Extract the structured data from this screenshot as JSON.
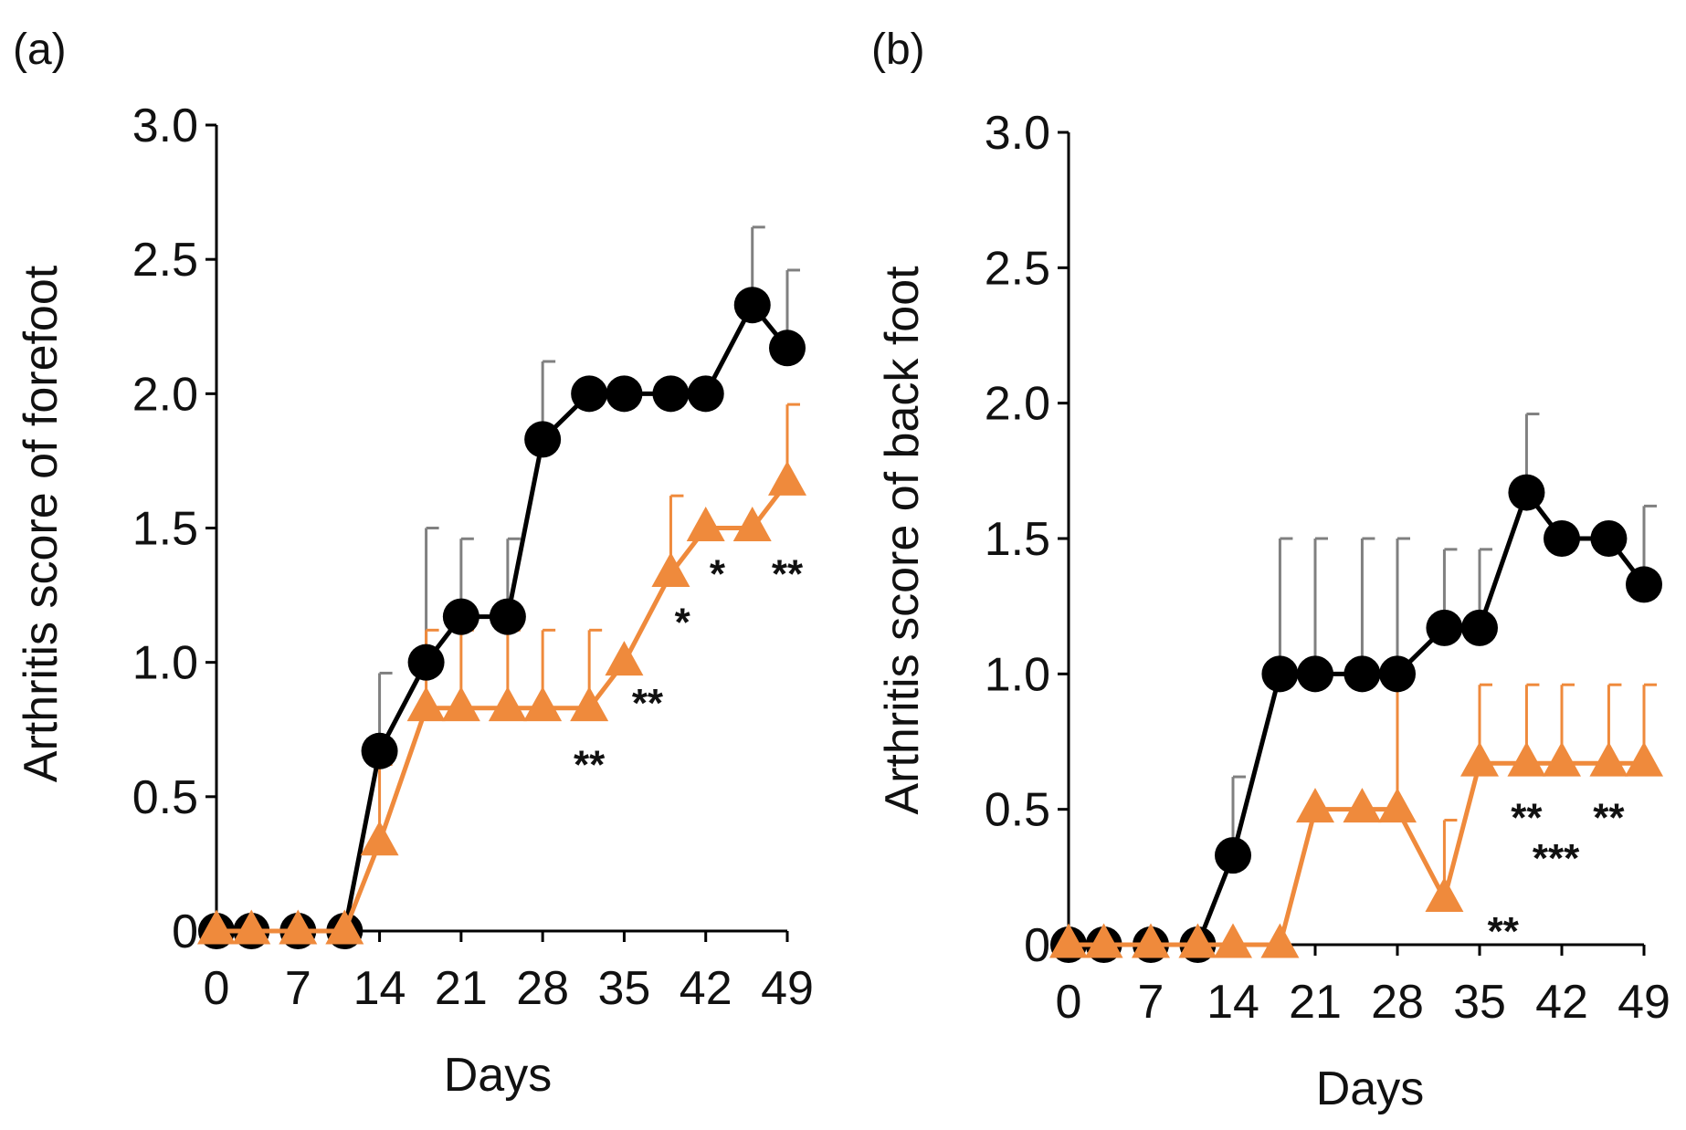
{
  "colors": {
    "black_series": "#000000",
    "orange_series": "#ef8a3c",
    "error_bar_black": "#808080",
    "error_bar_orange": "#ef8a3c"
  },
  "chart_data": [
    {
      "type": "line",
      "panel_label": "(a)",
      "xlabel": "Days",
      "ylabel": "Arthritis score of forefoot",
      "xlim": [
        0,
        49
      ],
      "ylim": [
        0,
        3.0
      ],
      "xticks": [
        0,
        7,
        14,
        21,
        28,
        35,
        42,
        49
      ],
      "xtick_labels": [
        "0",
        "7",
        "14",
        "21",
        "28",
        "35",
        "42",
        "49"
      ],
      "yticks": [
        0,
        0.5,
        1.0,
        1.5,
        2.0,
        2.5,
        3.0
      ],
      "ytick_labels": [
        "0",
        "0.5",
        "1.0",
        "1.5",
        "2.0",
        "2.5",
        "3.0"
      ],
      "series": [
        {
          "marker": "circle",
          "color": "#000000",
          "x": [
            0,
            3,
            7,
            11,
            14,
            18,
            21,
            25,
            28,
            32,
            35,
            39,
            42,
            46,
            49
          ],
          "y": [
            0,
            0,
            0,
            0,
            0.67,
            1.0,
            1.17,
            1.17,
            1.83,
            2.0,
            2.0,
            2.0,
            2.0,
            2.33,
            2.17
          ],
          "err": [
            0,
            0,
            0,
            0,
            0.29,
            0.5,
            0.29,
            0.29,
            0.29,
            0,
            0,
            0,
            0,
            0.29,
            0.29
          ]
        },
        {
          "marker": "triangle",
          "color": "#ef8a3c",
          "x": [
            0,
            3,
            7,
            11,
            14,
            18,
            21,
            25,
            28,
            32,
            35,
            39,
            42,
            46,
            49
          ],
          "y": [
            0,
            0,
            0,
            0,
            0.33,
            0.83,
            0.83,
            0.83,
            0.83,
            0.83,
            1.0,
            1.33,
            1.5,
            1.5,
            1.67
          ],
          "err": [
            0,
            0,
            0,
            0,
            0.29,
            0.29,
            0.29,
            0.29,
            0.29,
            0.29,
            0,
            0.29,
            0,
            0,
            0.29
          ]
        }
      ],
      "annotations": [
        {
          "text": "**",
          "x": 32,
          "y": 0.62
        },
        {
          "text": "**",
          "x": 37,
          "y": 0.85
        },
        {
          "text": "*",
          "x": 40,
          "y": 1.15
        },
        {
          "text": "*",
          "x": 43,
          "y": 1.33
        },
        {
          "text": "**",
          "x": 49,
          "y": 1.33
        }
      ]
    },
    {
      "type": "line",
      "panel_label": "(b)",
      "xlabel": "Days",
      "ylabel": "Arthritis score of back foot",
      "xlim": [
        0,
        49
      ],
      "ylim": [
        0,
        3.0
      ],
      "xticks": [
        0,
        7,
        14,
        21,
        28,
        35,
        42,
        49
      ],
      "xtick_labels": [
        "0",
        "7",
        "14",
        "21",
        "28",
        "35",
        "42",
        "49"
      ],
      "yticks": [
        0,
        0.5,
        1.0,
        1.5,
        2.0,
        2.5,
        3.0
      ],
      "ytick_labels": [
        "0",
        "0.5",
        "1.0",
        "1.5",
        "2.0",
        "2.5",
        "3.0"
      ],
      "series": [
        {
          "marker": "circle",
          "color": "#000000",
          "x": [
            0,
            3,
            7,
            11,
            14,
            18,
            21,
            25,
            28,
            32,
            35,
            39,
            42,
            46,
            49
          ],
          "y": [
            0,
            0,
            0,
            0,
            0.33,
            1.0,
            1.0,
            1.0,
            1.0,
            1.17,
            1.17,
            1.67,
            1.5,
            1.5,
            1.33
          ],
          "err": [
            0,
            0,
            0,
            0,
            0.29,
            0.5,
            0.5,
            0.5,
            0.5,
            0.29,
            0.29,
            0.29,
            0,
            0,
            0.29
          ]
        },
        {
          "marker": "triangle",
          "color": "#ef8a3c",
          "x": [
            0,
            3,
            7,
            11,
            14,
            18,
            21,
            25,
            28,
            32,
            35,
            39,
            42,
            46,
            49
          ],
          "y": [
            0,
            0,
            0,
            0,
            0,
            0,
            0.5,
            0.5,
            0.5,
            0.17,
            0.67,
            0.67,
            0.67,
            0.67,
            0.67
          ],
          "err": [
            0,
            0,
            0,
            0,
            0,
            0,
            0,
            0,
            0.5,
            0.29,
            0.29,
            0.29,
            0.29,
            0.29,
            0.29
          ]
        }
      ],
      "annotations": [
        {
          "text": "**",
          "x": 37,
          "y": 0.05
        },
        {
          "text": "**",
          "x": 39,
          "y": 0.47
        },
        {
          "text": "***",
          "x": 41.5,
          "y": 0.32
        },
        {
          "text": "**",
          "x": 46,
          "y": 0.47
        }
      ]
    }
  ]
}
